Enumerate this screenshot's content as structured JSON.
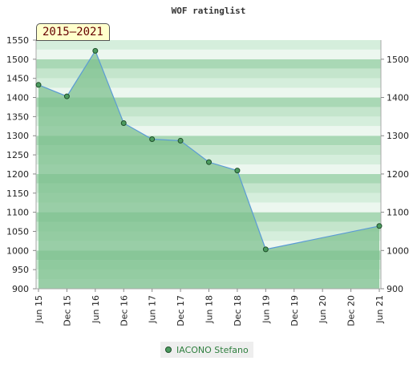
{
  "chart_data": {
    "type": "area",
    "title": "WOF ratinglist",
    "period_label": "2015–2021",
    "categories": [
      "Jun 15",
      "Dec 15",
      "Jun 16",
      "Dec 16",
      "Jun 17",
      "Dec 17",
      "Jun 18",
      "Dec 18",
      "Jun 19",
      "Dec 19",
      "Jun 20",
      "Dec 20",
      "Jun 21"
    ],
    "series": [
      {
        "name": "IACONO Stefano",
        "points": [
          {
            "x": "Jun 15",
            "y": 1433
          },
          {
            "x": "Dec 15",
            "y": 1403
          },
          {
            "x": "Jun 16",
            "y": 1522
          },
          {
            "x": "Dec 16",
            "y": 1333
          },
          {
            "x": "Jun 17",
            "y": 1291
          },
          {
            "x": "Dec 17",
            "y": 1287
          },
          {
            "x": "Jun 18",
            "y": 1231
          },
          {
            "x": "Dec 18",
            "y": 1209
          },
          {
            "x": "Jun 19",
            "y": 1003
          },
          {
            "x": "Jun 21",
            "y": 1064
          }
        ]
      }
    ],
    "yaxis_left": {
      "ylim": [
        900,
        1550
      ],
      "ticks": [
        900,
        950,
        1000,
        1050,
        1100,
        1150,
        1200,
        1250,
        1300,
        1350,
        1400,
        1450,
        1500,
        1550
      ]
    },
    "yaxis_right": {
      "ylim": [
        900,
        1550
      ],
      "ticks": [
        900,
        1000,
        1100,
        1200,
        1300,
        1400,
        1500
      ]
    },
    "legend_position": "bottom-center",
    "colors": {
      "line": "#5b9bd5",
      "area": "#7dc08f",
      "band_dark": "#a9d8b5",
      "band_light": "#ecf7ef",
      "marker": "#4c9b5f"
    }
  }
}
